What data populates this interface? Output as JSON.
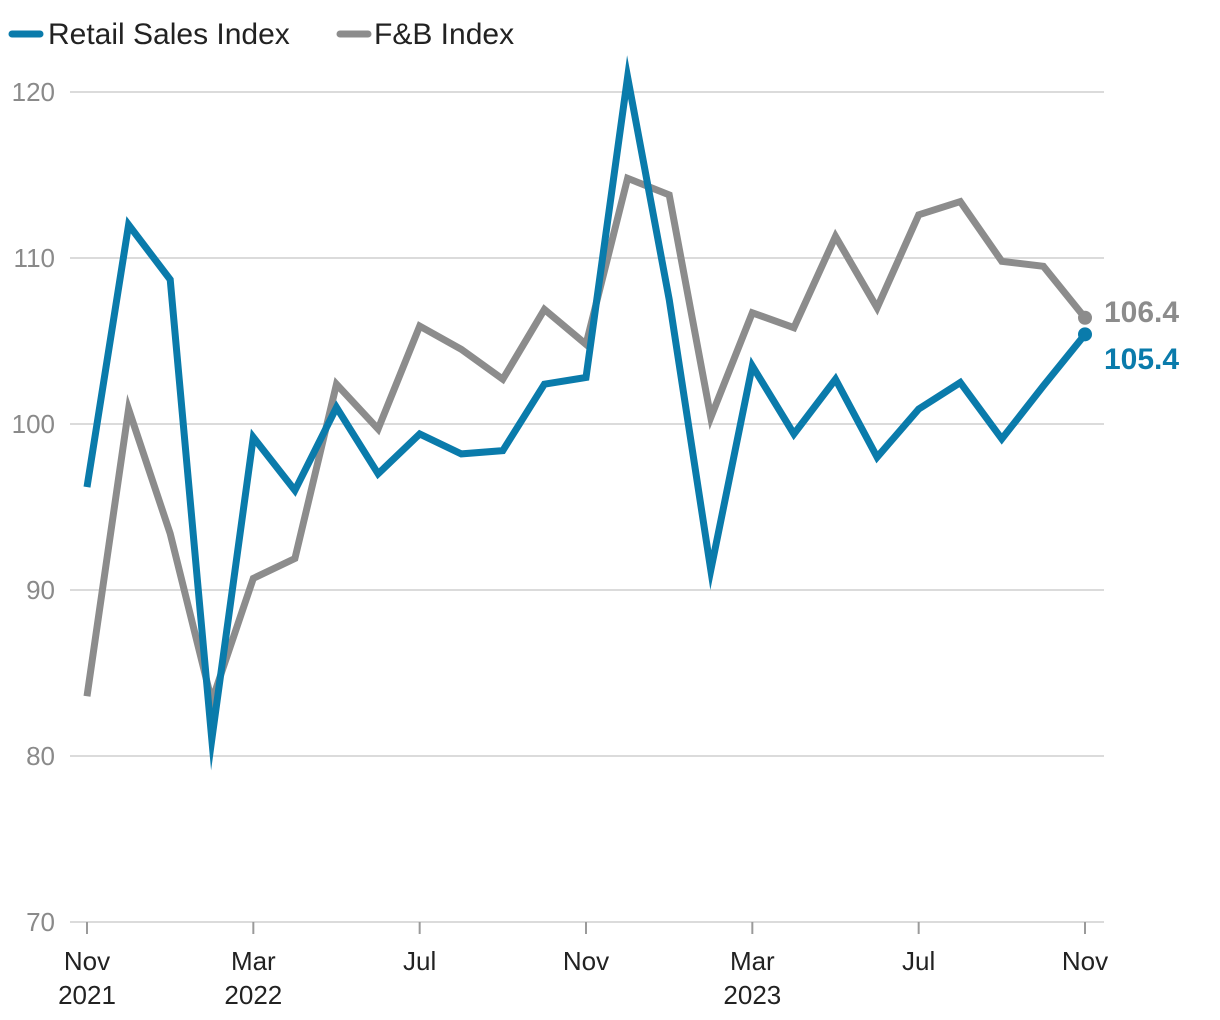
{
  "chart_data": {
    "type": "line",
    "title": "",
    "xlabel": "",
    "ylabel": "",
    "ylim": [
      70,
      122
    ],
    "y_ticks": [
      70,
      80,
      90,
      100,
      110,
      120
    ],
    "y_tick_labels": [
      "70",
      "80",
      "90",
      "100",
      "110",
      "120"
    ],
    "grid": true,
    "legend_position": "top-left",
    "x_ticks": [
      {
        "index": 0,
        "line1": "Nov",
        "line2": "2021"
      },
      {
        "index": 4,
        "line1": "Mar",
        "line2": "2022"
      },
      {
        "index": 8,
        "line1": "Jul",
        "line2": ""
      },
      {
        "index": 12,
        "line1": "Nov",
        "line2": ""
      },
      {
        "index": 16,
        "line1": "Mar",
        "line2": "2023"
      },
      {
        "index": 20,
        "line1": "Jul",
        "line2": ""
      },
      {
        "index": 24,
        "line1": "Nov",
        "line2": ""
      }
    ],
    "x": [
      "Nov 2021",
      "Dec 2021",
      "Jan 2022",
      "Feb 2022",
      "Mar 2022",
      "Apr 2022",
      "May 2022",
      "Jun 2022",
      "Jul 2022",
      "Aug 2022",
      "Sep 2022",
      "Oct 2022",
      "Nov 2022",
      "Dec 2022",
      "Jan 2023",
      "Feb 2023",
      "Mar 2023",
      "Apr 2023",
      "May 2023",
      "Jun 2023",
      "Jul 2023",
      "Aug 2023",
      "Sep 2023",
      "Oct 2023",
      "Nov 2023"
    ],
    "series": [
      {
        "name": "Retail Sales Index",
        "color": "#0a7bab",
        "values": [
          96.2,
          112.0,
          108.7,
          81.0,
          99.2,
          96.0,
          101.0,
          97.0,
          99.4,
          98.2,
          98.4,
          102.4,
          102.8,
          120.9,
          107.5,
          91.2,
          103.5,
          99.4,
          102.7,
          98.0,
          100.9,
          102.5,
          99.1,
          102.3,
          105.4
        ],
        "end_label": "105.4"
      },
      {
        "name": "F&B Index",
        "color": "#8c8c8c",
        "values": [
          83.6,
          100.9,
          93.4,
          83.3,
          90.7,
          91.9,
          102.4,
          99.7,
          105.9,
          104.5,
          102.7,
          106.9,
          104.8,
          114.8,
          113.8,
          100.4,
          106.7,
          105.8,
          111.3,
          107.0,
          112.6,
          113.4,
          109.8,
          109.5,
          106.4
        ],
        "end_label": "106.4"
      }
    ]
  }
}
